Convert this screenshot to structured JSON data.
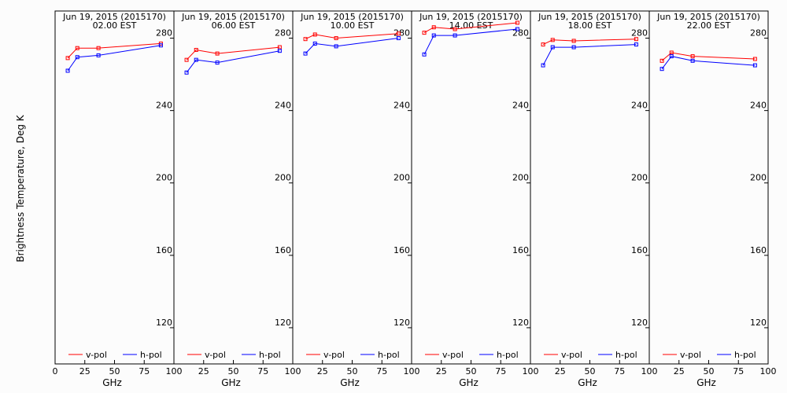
{
  "figure": {
    "ylabel": "Brightness Temperature, Deg K",
    "xlabel": "GHz",
    "legend": [
      "v-pol",
      "h-pol"
    ]
  },
  "colors": {
    "v_pol": "#ff0000",
    "h_pol": "#0000ff"
  },
  "chart_data": [
    {
      "type": "line",
      "title": "Jun 19, 2015 (2015170)",
      "subtitle": "02.00 EST",
      "xlabel": "GHz",
      "ylabel": "Brightness Temperature, Deg K",
      "x": [
        10.65,
        18.7,
        36.5,
        89
      ],
      "xlim": [
        0,
        100
      ],
      "ylim": [
        100,
        295
      ],
      "xticks": [
        0,
        25,
        50,
        75,
        100
      ],
      "yticks": [
        120,
        160,
        200,
        240,
        280
      ],
      "series": [
        {
          "name": "v-pol",
          "values": [
            269,
            274.5,
            274.5,
            277
          ]
        },
        {
          "name": "h-pol",
          "values": [
            262,
            269.5,
            270.5,
            276
          ]
        }
      ]
    },
    {
      "type": "line",
      "title": "Jun 19, 2015 (2015170)",
      "subtitle": "06.00 EST",
      "xlabel": "GHz",
      "ylabel": "Brightness Temperature, Deg K",
      "x": [
        10.65,
        18.7,
        36.5,
        89
      ],
      "xlim": [
        0,
        100
      ],
      "ylim": [
        100,
        295
      ],
      "xticks": [
        0,
        25,
        50,
        75,
        100
      ],
      "yticks": [
        120,
        160,
        200,
        240,
        280
      ],
      "series": [
        {
          "name": "v-pol",
          "values": [
            268,
            273.5,
            271.5,
            275
          ]
        },
        {
          "name": "h-pol",
          "values": [
            261,
            268,
            266.5,
            273
          ]
        }
      ]
    },
    {
      "type": "line",
      "title": "Jun 19, 2015 (2015170)",
      "subtitle": "10.00 EST",
      "xlabel": "GHz",
      "ylabel": "Brightness Temperature, Deg K",
      "x": [
        10.65,
        18.7,
        36.5,
        89
      ],
      "xlim": [
        0,
        100
      ],
      "ylim": [
        100,
        295
      ],
      "xticks": [
        0,
        25,
        50,
        75,
        100
      ],
      "yticks": [
        120,
        160,
        200,
        240,
        280
      ],
      "series": [
        {
          "name": "v-pol",
          "values": [
            279.5,
            282,
            280,
            282.5
          ]
        },
        {
          "name": "h-pol",
          "values": [
            271.5,
            277,
            275.5,
            280
          ]
        }
      ]
    },
    {
      "type": "line",
      "title": "Jun 19, 2015 (2015170)",
      "subtitle": "14.00 EST",
      "xlabel": "GHz",
      "ylabel": "Brightness Temperature, Deg K",
      "x": [
        10.65,
        18.7,
        36.5,
        89
      ],
      "xlim": [
        0,
        100
      ],
      "ylim": [
        100,
        295
      ],
      "xticks": [
        0,
        25,
        50,
        75,
        100
      ],
      "yticks": [
        120,
        160,
        200,
        240,
        280
      ],
      "series": [
        {
          "name": "v-pol",
          "values": [
            283,
            286,
            285,
            288.5
          ]
        },
        {
          "name": "h-pol",
          "values": [
            271,
            281.5,
            281.5,
            285
          ]
        }
      ]
    },
    {
      "type": "line",
      "title": "Jun 19, 2015 (2015170)",
      "subtitle": "18.00 EST",
      "xlabel": "GHz",
      "ylabel": "Brightness Temperature, Deg K",
      "x": [
        10.65,
        18.7,
        36.5,
        89
      ],
      "xlim": [
        0,
        100
      ],
      "ylim": [
        100,
        295
      ],
      "xticks": [
        0,
        25,
        50,
        75,
        100
      ],
      "yticks": [
        120,
        160,
        200,
        240,
        280
      ],
      "series": [
        {
          "name": "v-pol",
          "values": [
            276.5,
            279,
            278.5,
            279.5
          ]
        },
        {
          "name": "h-pol",
          "values": [
            265,
            275,
            275,
            276.5
          ]
        }
      ]
    },
    {
      "type": "line",
      "title": "Jun 19, 2015 (2015170)",
      "subtitle": "22.00 EST",
      "xlabel": "GHz",
      "ylabel": "Brightness Temperature, Deg K",
      "x": [
        10.65,
        18.7,
        36.5,
        89
      ],
      "xlim": [
        0,
        100
      ],
      "ylim": [
        100,
        295
      ],
      "xticks": [
        0,
        25,
        50,
        75,
        100
      ],
      "yticks": [
        120,
        160,
        200,
        240,
        280
      ],
      "series": [
        {
          "name": "v-pol",
          "values": [
            267.5,
            272,
            270,
            268.5
          ]
        },
        {
          "name": "h-pol",
          "values": [
            263,
            270,
            267.5,
            265
          ]
        }
      ]
    }
  ]
}
